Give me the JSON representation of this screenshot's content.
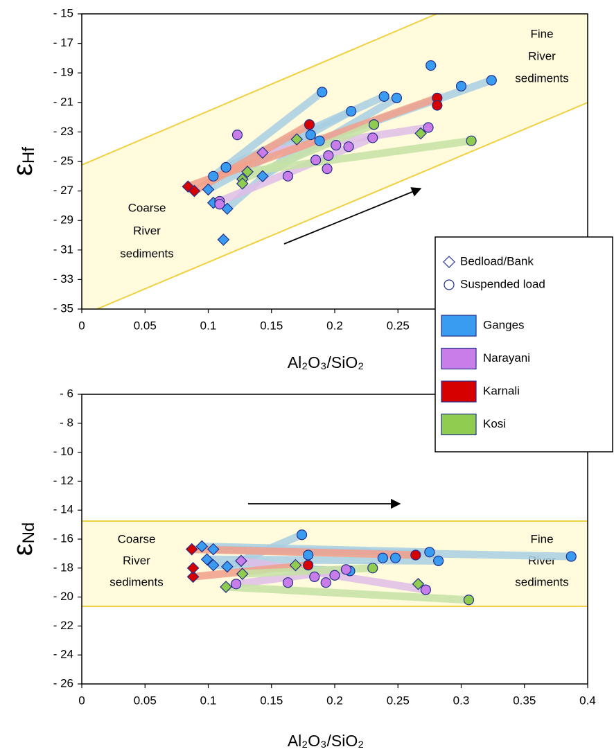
{
  "chart_data": [
    {
      "type": "scatter",
      "x_label": "Al₂O₃/SiO₂",
      "y_label": [
        "ε",
        "Hf"
      ],
      "xlim": [
        0,
        0.4
      ],
      "ylim": [
        -35,
        -15
      ],
      "xticks": [
        0,
        0.05,
        0.1,
        0.15,
        0.2,
        0.25
      ],
      "yticks": [
        {
          "value": -15,
          "label": "- 15"
        },
        {
          "value": -17,
          "label": "- 17"
        },
        {
          "value": -19,
          "label": "- 19"
        },
        {
          "value": -21,
          "label": "- 21"
        },
        {
          "value": -23,
          "label": "- 23"
        },
        {
          "value": -25,
          "label": "- 25"
        },
        {
          "value": -27,
          "label": "- 27"
        },
        {
          "value": -29,
          "label": "- 29"
        },
        {
          "value": -31,
          "label": "- 31"
        },
        {
          "value": -33,
          "label": "- 33"
        },
        {
          "value": -35,
          "label": "- 35"
        }
      ],
      "annotations": [
        {
          "lines": [
            "Coarse",
            "River",
            "sediments"
          ]
        },
        {
          "lines": [
            "Fine",
            "River",
            "sediments"
          ]
        }
      ],
      "legend": [
        {
          "label": "Bedload/Bank",
          "marker": "diamond"
        },
        {
          "label": "Suspended load",
          "marker": "circle"
        }
      ],
      "series": [
        {
          "name": "Ganges",
          "color": "#3a9cf0",
          "line_color": "#a9cfe4",
          "x": [
            0.1,
            0.213,
            0.104,
            0.19,
            0.115,
            0.181,
            0.114,
            0.239,
            0.143,
            0.249,
            0.188,
            0.324,
            0.112,
            0.276,
            0.3,
            0.104
          ],
          "values": [
            -26.9,
            -21.6,
            -26.0,
            -20.3,
            -28.2,
            -23.2,
            -25.4,
            -20.6,
            -26.0,
            -20.7,
            -23.6,
            -19.5,
            -30.3,
            -18.5,
            -19.9,
            -27.8
          ],
          "markers": [
            "diamond",
            "circle",
            "circle",
            "circle",
            "diamond",
            "circle",
            "circle",
            "circle",
            "diamond",
            "circle",
            "circle",
            "circle",
            "diamond",
            "circle",
            "circle",
            "diamond"
          ],
          "join": [
            true,
            false,
            true,
            false,
            true,
            false,
            true,
            false,
            true,
            false,
            true,
            false,
            false,
            false,
            false,
            false
          ]
        },
        {
          "name": "Narayani",
          "color": "#c87de8",
          "line_color": "#e0bde9",
          "x": [
            0.143,
            0.274,
            0.109,
            0.23,
            0.123,
            0.109,
            0.163,
            0.185,
            0.195,
            0.201,
            0.211,
            0.194
          ],
          "values": [
            -24.4,
            -22.7,
            -27.7,
            -23.4,
            -23.2,
            -27.9,
            -26.0,
            -24.9,
            -24.6,
            -23.9,
            -24.0,
            -25.5
          ],
          "markers": [
            "diamond",
            "circle",
            "circle",
            "circle",
            "circle",
            "circle",
            "circle",
            "circle",
            "circle",
            "circle",
            "circle",
            "circle"
          ],
          "join": [
            true,
            false,
            true,
            false,
            false,
            false,
            false,
            false,
            false,
            false,
            false,
            false
          ]
        },
        {
          "name": "Karnali",
          "color": "#d60000",
          "line_color": "#f2a08a",
          "x": [
            0.084,
            0.281,
            0.089,
            0.18,
            0.281
          ],
          "values": [
            -26.7,
            -20.7,
            -27.0,
            -22.5,
            -21.2
          ],
          "markers": [
            "diamond",
            "circle",
            "diamond",
            "circle",
            "circle"
          ],
          "join": [
            true,
            false,
            true,
            false,
            false
          ]
        },
        {
          "name": "Kosi",
          "color": "#8fcc4f",
          "line_color": "#c6e3a6",
          "x": [
            0.131,
            0.308,
            0.127,
            0.231,
            0.127,
            0.17,
            0.268
          ],
          "values": [
            -25.7,
            -23.6,
            -26.2,
            -22.5,
            -26.5,
            -23.5,
            -23.1
          ],
          "markers": [
            "diamond",
            "circle",
            "diamond",
            "circle",
            "diamond",
            "diamond",
            "diamond"
          ],
          "join": [
            true,
            false,
            true,
            false,
            false,
            false,
            false
          ]
        }
      ]
    },
    {
      "type": "scatter",
      "x_label": "Al₂O₃/SiO₂",
      "y_label": [
        "ε",
        "Nd"
      ],
      "xlim": [
        0,
        0.4
      ],
      "ylim": [
        -26,
        -6
      ],
      "xticks": [
        0,
        0.05,
        0.1,
        0.15,
        0.2,
        0.25,
        0.3,
        0.35,
        0.4
      ],
      "yticks": [
        {
          "value": -6,
          "label": "- 6"
        },
        {
          "value": -8,
          "label": "- 8"
        },
        {
          "value": -10,
          "label": "- 10"
        },
        {
          "value": -12,
          "label": "- 12"
        },
        {
          "value": -14,
          "label": "- 14"
        },
        {
          "value": -16,
          "label": "- 16"
        },
        {
          "value": -18,
          "label": "- 18"
        },
        {
          "value": -20,
          "label": "- 20"
        },
        {
          "value": -22,
          "label": "- 22"
        },
        {
          "value": -24,
          "label": "- 24"
        },
        {
          "value": -26,
          "label": "- 26"
        }
      ],
      "annotations": [
        {
          "lines": [
            "Coarse",
            "River",
            "sediments"
          ]
        },
        {
          "lines": [
            "Fine",
            "River",
            "sediments"
          ]
        }
      ],
      "series": [
        {
          "color": "#3a9cf0",
          "line_color": "#a9cfe4",
          "x": [
            0.115,
            0.174,
            0.104,
            0.387,
            0.099,
            0.282,
            0.104,
            0.212,
            0.095,
            0.275,
            0.179,
            0.238,
            0.248
          ],
          "values": [
            -17.9,
            -15.7,
            -16.7,
            -17.2,
            -17.4,
            -17.5,
            -17.8,
            -18.2,
            -16.5,
            -16.9,
            -17.1,
            -17.3,
            -17.3
          ],
          "markers": [
            "diamond",
            "circle",
            "diamond",
            "circle",
            "diamond",
            "circle",
            "diamond",
            "circle",
            "diamond",
            "circle",
            "circle",
            "circle",
            "circle"
          ],
          "join": [
            true,
            false,
            true,
            false,
            true,
            false,
            true,
            false,
            true,
            false,
            false,
            false,
            false
          ]
        },
        {
          "color": "#c87de8",
          "line_color": "#e0bde9",
          "x": [
            0.126,
            0.272,
            0.122,
            0.209,
            0.163,
            0.184,
            0.193,
            0.2
          ],
          "values": [
            -17.5,
            -19.5,
            -19.1,
            -18.1,
            -19.0,
            -18.6,
            -19.0,
            -18.5
          ],
          "markers": [
            "diamond",
            "circle",
            "circle",
            "circle",
            "circle",
            "circle",
            "circle",
            "circle"
          ],
          "join": [
            true,
            false,
            true,
            false,
            false,
            false,
            false,
            false
          ]
        },
        {
          "color": "#d60000",
          "line_color": "#f2a08a",
          "x": [
            0.087,
            0.264,
            0.088,
            0.179,
            0.088
          ],
          "values": [
            -16.7,
            -17.1,
            -18.6,
            -17.8,
            -18.0
          ],
          "markers": [
            "diamond",
            "circle",
            "diamond",
            "circle",
            "diamond"
          ],
          "join": [
            true,
            false,
            true,
            false,
            false
          ]
        },
        {
          "color": "#8fcc4f",
          "line_color": "#c6e3a6",
          "x": [
            0.114,
            0.306,
            0.127,
            0.23,
            0.169,
            0.266
          ],
          "values": [
            -19.3,
            -20.2,
            -18.4,
            -18.0,
            -17.8,
            -19.1
          ],
          "markers": [
            "diamond",
            "circle",
            "diamond",
            "circle",
            "diamond",
            "diamond"
          ],
          "join": [
            true,
            false,
            true,
            false,
            false,
            false
          ]
        }
      ]
    }
  ]
}
